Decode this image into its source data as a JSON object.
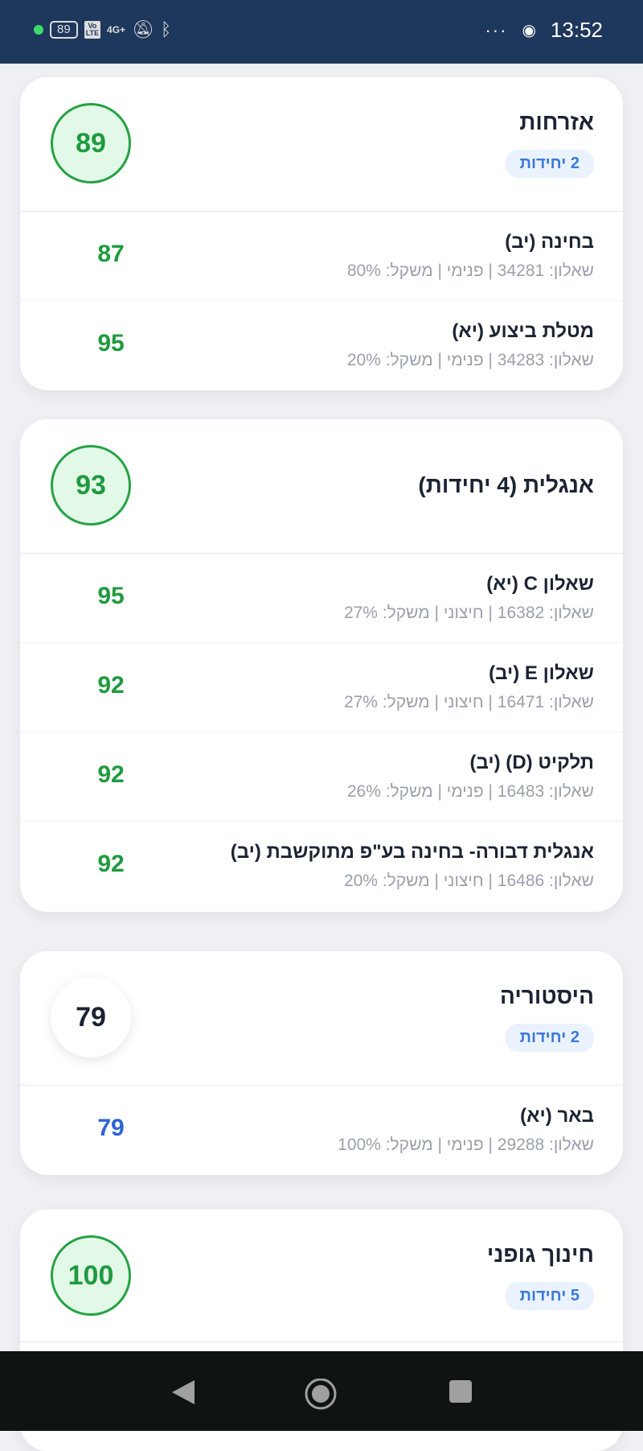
{
  "status_bar": {
    "battery": "89",
    "network": "4G+",
    "volte": "Vo LTE",
    "time": "13:52",
    "more": "···"
  },
  "subjects": [
    {
      "title": "אזרחות",
      "units": "2 יחידות",
      "score": "89",
      "circle": "green",
      "rows": [
        {
          "name": "בחינה (יב)",
          "meta": "שאלון: 34281 | פנימי | משקל: 80%",
          "score": "87",
          "color": "green"
        },
        {
          "name": "מטלת ביצוע (יא)",
          "meta": "שאלון: 34283 | פנימי | משקל: 20%",
          "score": "95",
          "color": "green"
        }
      ]
    },
    {
      "title": "אנגלית (4 יחידות)",
      "score": "93",
      "circle": "green",
      "rows": [
        {
          "name": "שאלון C (יא)",
          "meta": "שאלון: 16382 | חיצוני | משקל: 27%",
          "score": "95",
          "color": "green"
        },
        {
          "name": "שאלון E (יב)",
          "meta": "שאלון: 16471 | חיצוני | משקל: 27%",
          "score": "92",
          "color": "green"
        },
        {
          "name": "תלקיט (D) (יב)",
          "meta": "שאלון: 16483 | פנימי | משקל: 26%",
          "score": "92",
          "color": "green"
        },
        {
          "name": "אנגלית דבורה- בחינה בע\"פ מתוקשבת (יב)",
          "meta": "שאלון: 16486 | חיצוני | משקל: 20%",
          "score": "92",
          "color": "green"
        }
      ]
    },
    {
      "title": "היסטוריה",
      "units": "2 יחידות",
      "score": "79",
      "circle": "white",
      "rows": [
        {
          "name": "באר (יא)",
          "meta": "שאלון: 29288 | פנימי | משקל: 100%",
          "score": "79",
          "color": "blue"
        }
      ]
    },
    {
      "title": "חינוך גופני",
      "units": "5 יחידות",
      "score": "100",
      "circle": "green",
      "rows": []
    }
  ],
  "colors": {
    "green": "#1f9a40",
    "blue": "#2f63d6",
    "status_bar": "#1e375c",
    "badge": "#3b78d8"
  }
}
